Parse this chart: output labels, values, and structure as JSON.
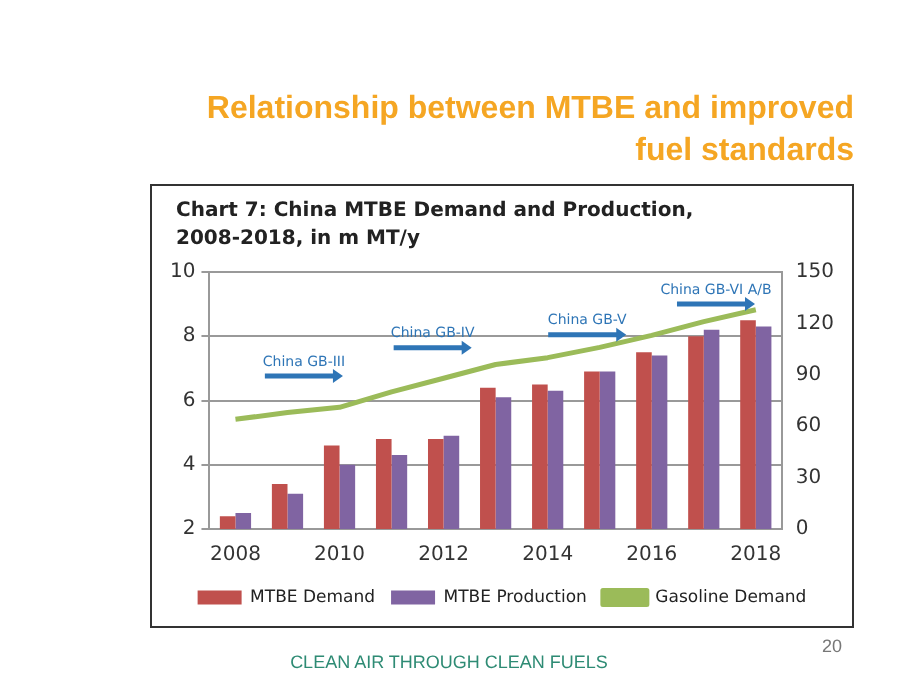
{
  "chart_data": {
    "type": "bar",
    "title": "Relationship between MTBE and improved fuel standards",
    "subtitle": "Chart 7: China MTBE Demand and Production, 2008-2018, in m MT/y",
    "x": [
      2008,
      2009,
      2010,
      2011,
      2012,
      2013,
      2014,
      2015,
      2016,
      2017,
      2018
    ],
    "xlim": [
      2007.5,
      2018.5
    ],
    "xticks": [
      2008,
      2010,
      2012,
      2014,
      2016,
      2018
    ],
    "ylim": [
      2,
      10
    ],
    "yticks": [
      2,
      4,
      6,
      8,
      10
    ],
    "y2lim": [
      0,
      150
    ],
    "y2ticks": [
      0,
      30,
      60,
      90,
      120,
      150
    ],
    "series": [
      {
        "name": "MTBE Demand",
        "color": "#c0504d",
        "values": [
          2.4,
          3.4,
          4.6,
          4.8,
          4.8,
          6.4,
          6.5,
          6.9,
          7.5,
          8.0,
          8.5
        ]
      },
      {
        "name": "MTBE Production",
        "color": "#8064a2",
        "values": [
          2.5,
          3.1,
          4.0,
          4.3,
          4.9,
          6.1,
          6.3,
          6.9,
          7.4,
          8.2,
          8.3
        ]
      },
      {
        "name": "Gasoline Demand",
        "type": "line",
        "axis": "y2",
        "color": "#9bbb59",
        "values": [
          64,
          68,
          71,
          80,
          88,
          96,
          100,
          106,
          113,
          121,
          128
        ]
      }
    ],
    "annotations": [
      "China GB-III",
      "China GB-IV",
      "China GB-V",
      "China GB-VI A/B",
      "CLEAN AIR THROUGH CLEAN FUELS",
      "20"
    ],
    "grid": "y",
    "legend": "bottom",
    "marker": "none"
  }
}
